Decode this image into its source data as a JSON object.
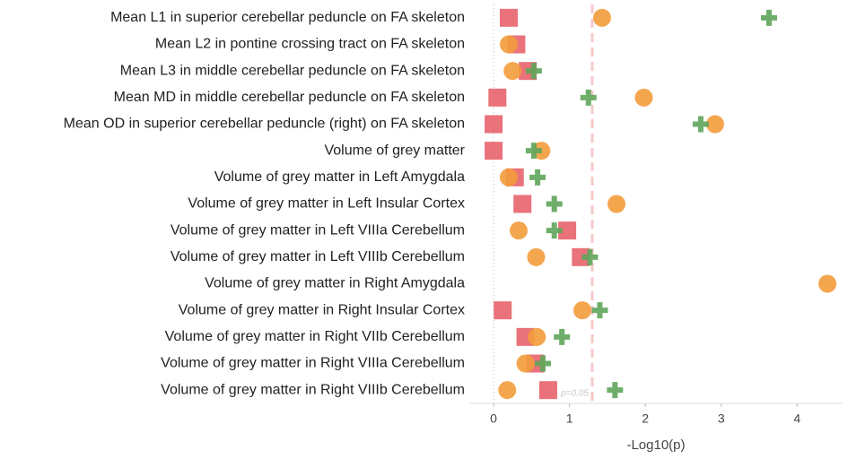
{
  "chart_data": {
    "type": "dot",
    "categories": [
      "Mean L1 in superior cerebellar peduncle on FA skeleton",
      "Mean L2 in pontine crossing tract on FA skeleton",
      "Mean L3 in middle cerebellar peduncle on FA skeleton",
      "Mean MD in middle cerebellar peduncle on FA skeleton",
      "Mean OD in superior cerebellar peduncle (right) on FA skeleton",
      "Volume of grey matter",
      "Volume of grey matter in Left Amygdala",
      "Volume of grey matter in Left Insular Cortex",
      "Volume of grey matter in Left VIIIa Cerebellum",
      "Volume of grey matter in Left VIIIb Cerebellum",
      "Volume of grey matter in Right Amygdala",
      "Volume of grey matter in Right Insular Cortex",
      "Volume of grey matter in Right VIIb Cerebellum",
      "Volume of grey matter in Right VIIIa Cerebellum",
      "Volume of grey matter in Right VIIIb Cerebellum"
    ],
    "series": [
      {
        "color": "#e8636b",
        "marker": "square",
        "values": [
          0.2,
          0.3,
          0.45,
          0.05,
          0.0,
          0.0,
          0.28,
          0.38,
          0.97,
          1.15,
          null,
          0.12,
          0.42,
          0.55,
          0.72
        ]
      },
      {
        "color": "#f39c3c",
        "marker": "circle",
        "values": [
          1.43,
          0.2,
          0.25,
          1.98,
          2.92,
          0.63,
          0.2,
          1.62,
          0.33,
          0.56,
          4.4,
          1.17,
          0.57,
          0.42,
          0.18
        ]
      },
      {
        "color": "#5ea55a",
        "marker": "plus",
        "values": [
          3.63,
          null,
          0.53,
          1.25,
          2.73,
          0.53,
          0.58,
          0.8,
          0.8,
          1.27,
          null,
          1.4,
          0.9,
          0.65,
          1.6
        ]
      }
    ],
    "xlim": [
      -0.32,
      4.6
    ],
    "xticks": [
      0,
      1,
      2,
      3,
      4
    ],
    "xlabel": "-Log10(p)",
    "threshold": 1.3,
    "threshold_label": "p=0.05"
  }
}
